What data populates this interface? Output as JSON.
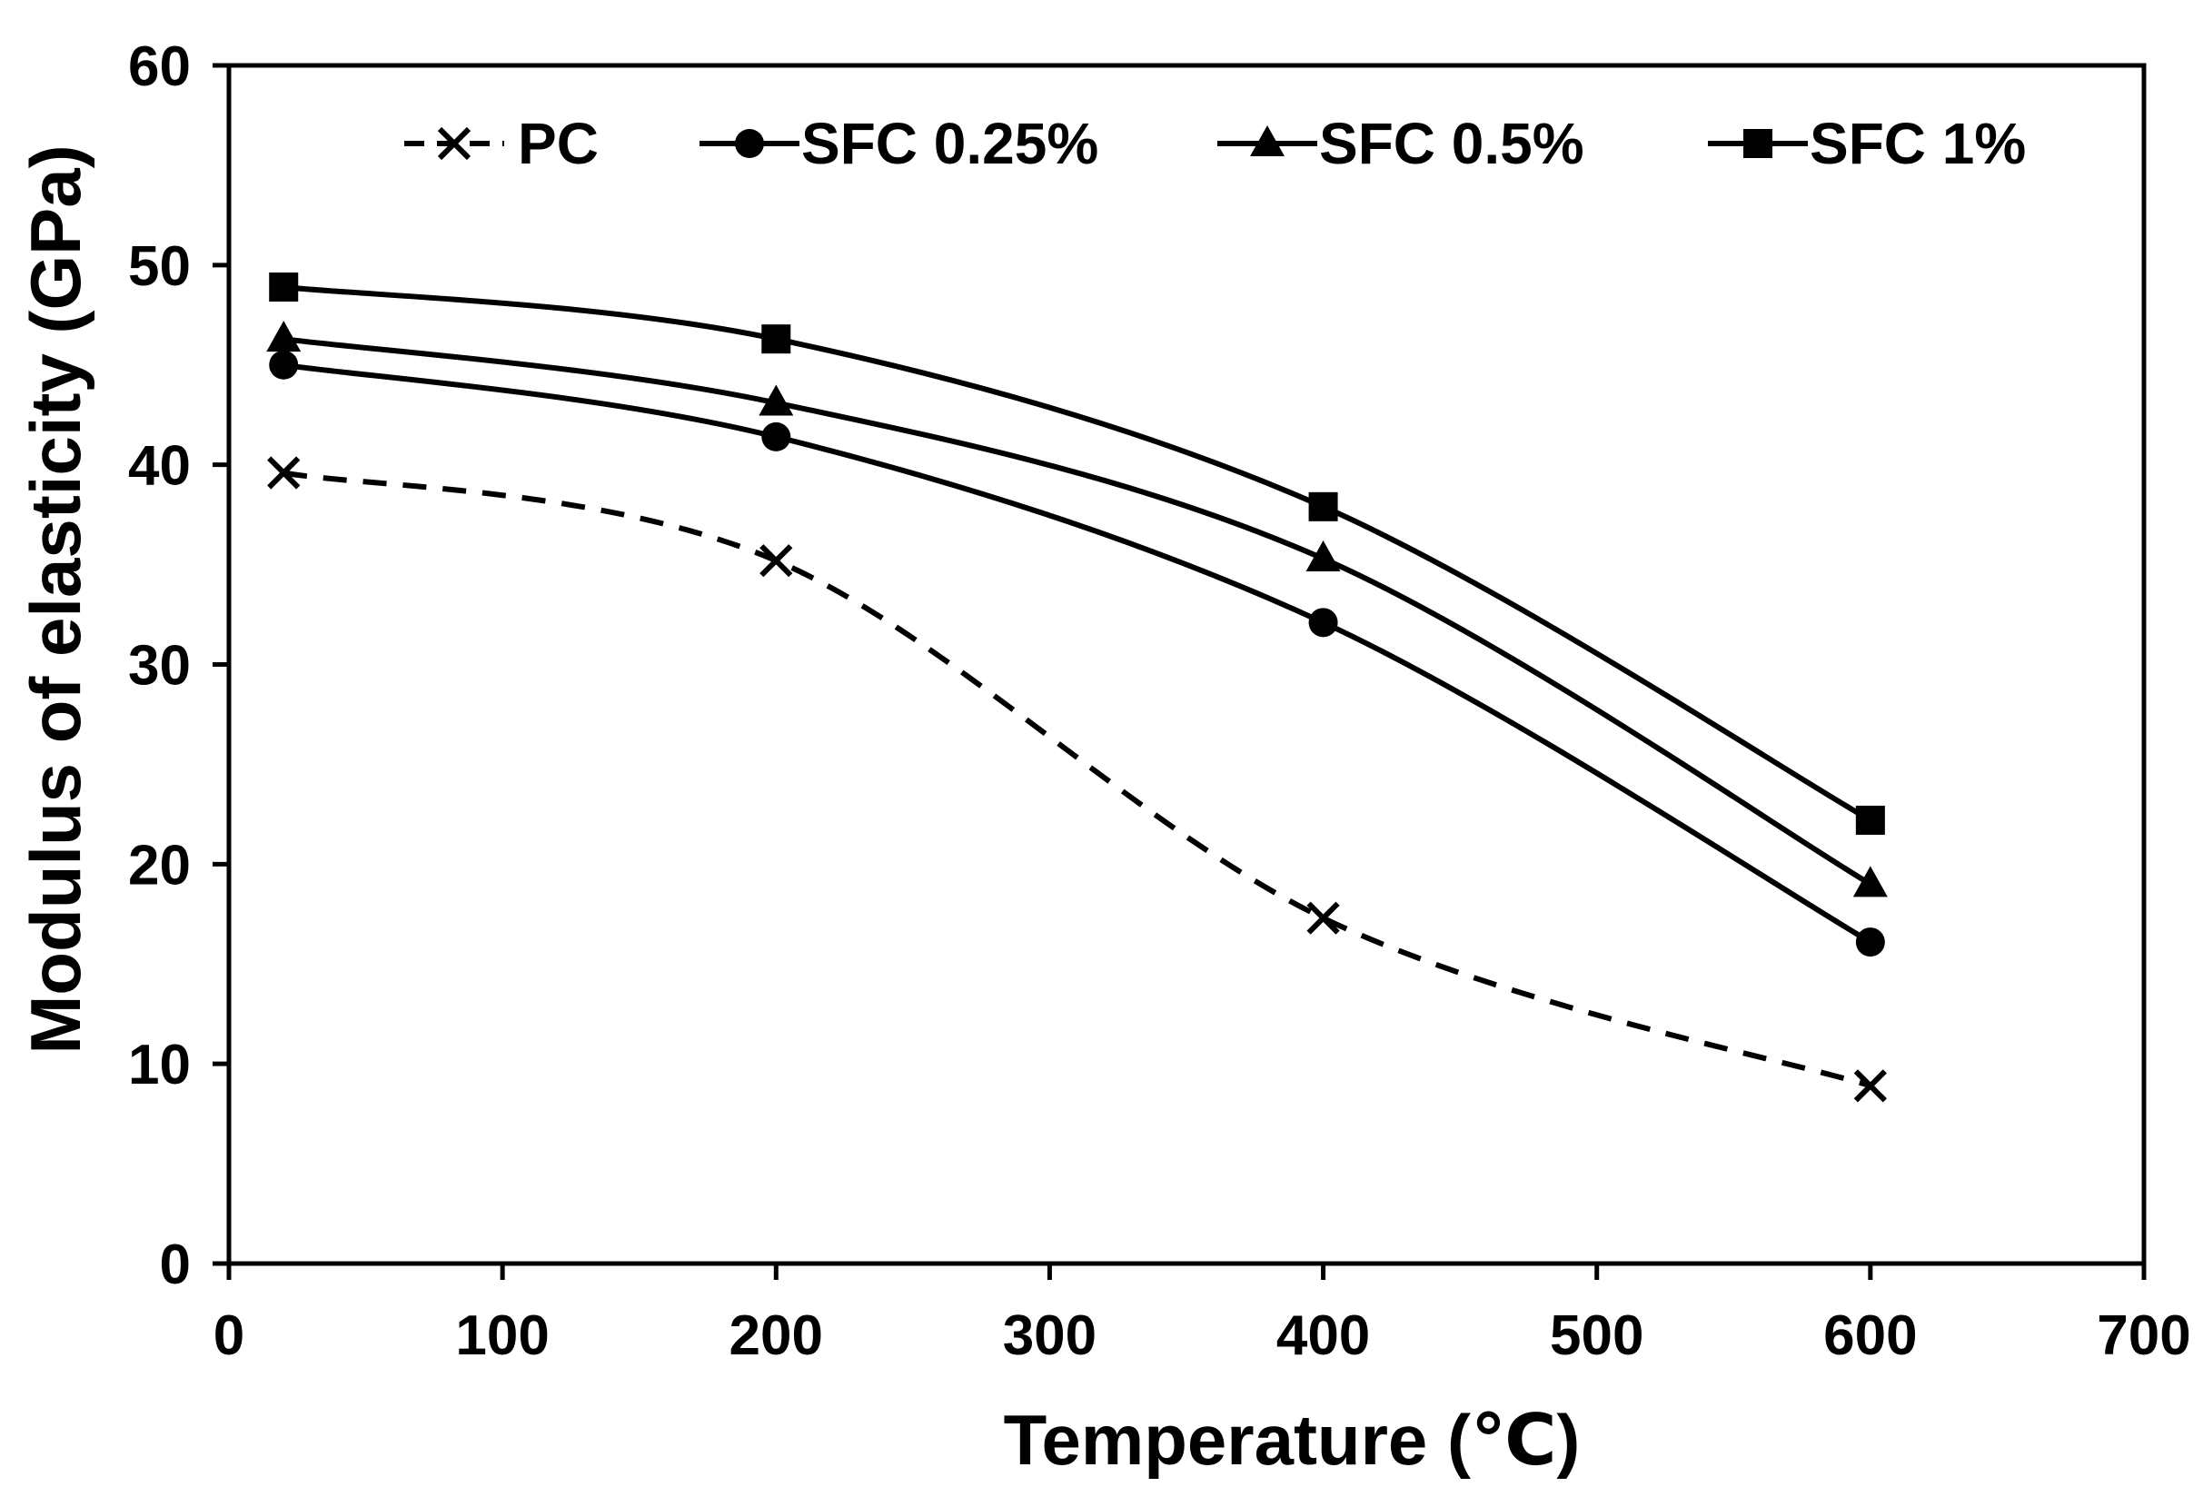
{
  "chart_data": {
    "type": "line",
    "title": "",
    "xlabel": "Temperature (℃)",
    "ylabel": "Modulus of elasticity (GPa)",
    "xlim": [
      0,
      700
    ],
    "ylim": [
      0,
      60
    ],
    "xticks": [
      0,
      100,
      200,
      300,
      400,
      500,
      600,
      700
    ],
    "yticks": [
      0,
      10,
      20,
      30,
      40,
      50,
      60
    ],
    "grid": false,
    "legend_position": "top",
    "x": [
      20,
      200,
      400,
      600
    ],
    "series": [
      {
        "name": "PC",
        "marker": "x",
        "dashed": true,
        "values": [
          39.6,
          35.2,
          17.3,
          8.9
        ]
      },
      {
        "name": "SFC 0.25%",
        "marker": "circle",
        "dashed": false,
        "values": [
          45.0,
          41.4,
          32.1,
          16.1
        ]
      },
      {
        "name": "SFC 0.5%",
        "marker": "triangle",
        "dashed": false,
        "values": [
          46.3,
          43.1,
          35.3,
          19.0
        ]
      },
      {
        "name": "SFC 1%",
        "marker": "square",
        "dashed": false,
        "values": [
          48.9,
          46.3,
          37.9,
          22.2
        ]
      }
    ]
  }
}
